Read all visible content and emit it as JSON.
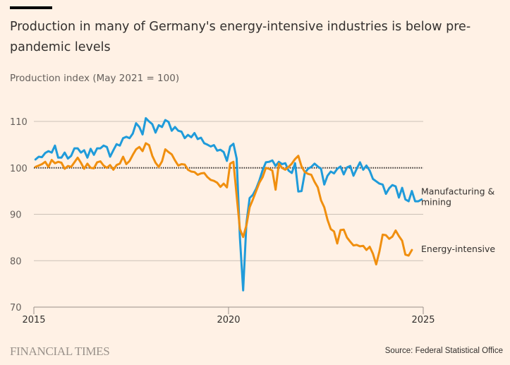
{
  "header": {
    "title": "Production in many of Germany's energy-intensive industries is below pre-pandemic levels",
    "subtitle": "Production index (May 2021 = 100)"
  },
  "footer": {
    "brand": "FINANCIAL TIMES",
    "source": "Source: Federal Statistical Office"
  },
  "colors": {
    "background": "#FFF1E5",
    "manufacturing": "#1F9BDA",
    "energy": "#F08F0F",
    "gridline": "#CCC1B7",
    "axis": "#999089",
    "reference": "#33302E"
  },
  "chart_data": {
    "type": "line",
    "title": "Production in many of Germany's energy-intensive industries is below pre-pandemic levels",
    "ylabel": "Production index (May 2021 = 100)",
    "xlabel": "",
    "x_start": "2015-01",
    "x_frequency": "monthly",
    "xlim": [
      2015,
      2025
    ],
    "ylim": [
      70,
      112
    ],
    "yticks": [
      70,
      80,
      90,
      100,
      110
    ],
    "xticks": [
      "2015",
      "2020",
      "2025"
    ],
    "grid": true,
    "reference_line": 100,
    "legend": "direct-labels-right",
    "series": [
      {
        "name": "Manufacturing & mining",
        "color_key": "manufacturing",
        "values": [
          101.8,
          102.4,
          102.3,
          103.2,
          103.6,
          103.3,
          104.8,
          102.2,
          102.2,
          103.3,
          102.0,
          102.6,
          104.2,
          104.2,
          103.3,
          103.8,
          102.2,
          104.1,
          102.8,
          104.2,
          104.2,
          104.8,
          104.5,
          102.4,
          103.8,
          105.1,
          104.8,
          106.4,
          106.7,
          106.4,
          107.4,
          109.6,
          108.8,
          107.2,
          110.7,
          110.0,
          109.4,
          107.6,
          109.2,
          108.8,
          110.3,
          109.9,
          108.0,
          108.8,
          108.0,
          107.8,
          106.4,
          107.1,
          106.6,
          107.5,
          106.2,
          106.5,
          105.3,
          105.0,
          104.6,
          104.9,
          103.7,
          103.9,
          103.4,
          101.5,
          104.6,
          105.2,
          102.0,
          85.0,
          73.6,
          88.0,
          93.5,
          94.2,
          95.5,
          97.3,
          99.5,
          101.2,
          101.3,
          101.6,
          100.4,
          101.3,
          100.8,
          101.0,
          99.4,
          98.9,
          101.0,
          94.9,
          95.0,
          98.9,
          99.8,
          100.2,
          100.9,
          100.3,
          99.8,
          96.4,
          98.3,
          99.2,
          98.8,
          99.8,
          100.3,
          98.6,
          100.1,
          100.4,
          98.3,
          99.8,
          101.2,
          99.6,
          100.5,
          99.4,
          97.6,
          97.1,
          96.6,
          96.4,
          94.4,
          95.6,
          96.3,
          96.0,
          93.6,
          95.7,
          93.2,
          92.8,
          95.0,
          92.8,
          92.8,
          93.2
        ]
      },
      {
        "name": "Energy-intensive",
        "color_key": "energy",
        "values": [
          100.2,
          100.5,
          100.8,
          101.3,
          100.2,
          101.7,
          101.0,
          101.3,
          101.1,
          99.8,
          100.4,
          100.2,
          101.2,
          102.2,
          101.1,
          99.8,
          100.9,
          100.0,
          99.9,
          101.2,
          101.4,
          100.5,
          100.0,
          100.6,
          99.6,
          100.6,
          100.9,
          102.4,
          100.8,
          101.5,
          102.8,
          104.0,
          104.5,
          103.6,
          105.3,
          104.9,
          102.6,
          101.1,
          100.2,
          101.4,
          104.0,
          103.4,
          102.9,
          101.6,
          100.5,
          100.8,
          100.7,
          99.6,
          99.2,
          99.1,
          98.5,
          98.8,
          98.9,
          98.0,
          97.4,
          97.2,
          96.8,
          95.9,
          96.6,
          95.8,
          100.9,
          101.3,
          94.0,
          86.8,
          85.1,
          87.6,
          91.5,
          93.2,
          95.0,
          96.8,
          98.0,
          100.0,
          99.8,
          99.4,
          95.3,
          100.9,
          100.0,
          99.6,
          100.2,
          100.9,
          101.9,
          102.6,
          100.3,
          99.1,
          98.7,
          98.5,
          97.0,
          95.8,
          93.0,
          91.5,
          88.8,
          86.8,
          86.3,
          83.7,
          86.6,
          86.7,
          85.0,
          84.1,
          83.3,
          83.4,
          83.1,
          83.2,
          82.3,
          83.0,
          81.5,
          79.2,
          82.0,
          85.6,
          85.5,
          84.7,
          85.2,
          86.5,
          85.3,
          84.3,
          81.3,
          81.1,
          82.3
        ]
      }
    ]
  }
}
